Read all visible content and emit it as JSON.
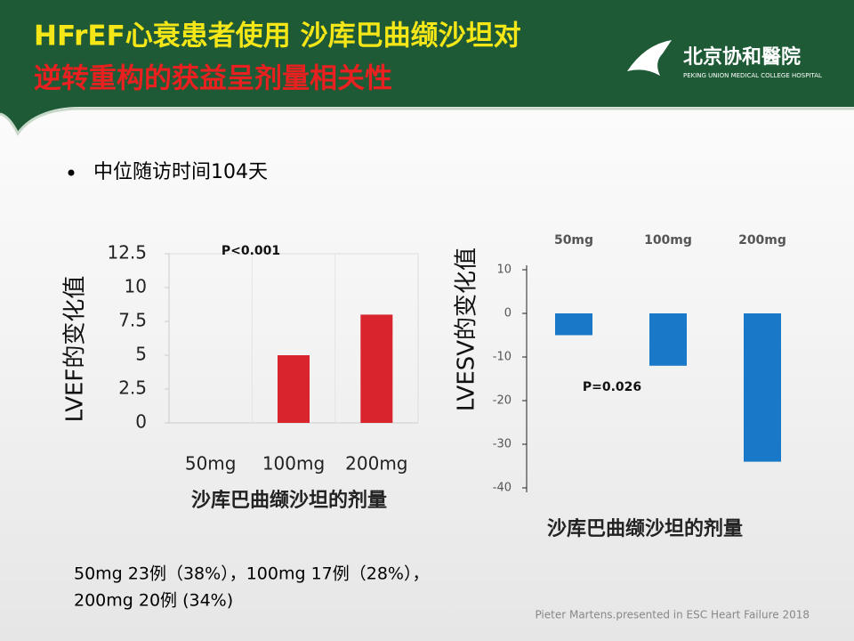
{
  "header": {
    "title_line1": "HFrEF心衰患者使用  沙库巴曲缬沙坦对",
    "title_line2": "逆转重构的获益呈剂量相关性",
    "logo_name": "北京协和醫院",
    "logo_english": "PEKING UNION MEDICAL COLLEGE HOSPITAL"
  },
  "bullet": "中位随访时间104天",
  "chart_data": [
    {
      "type": "bar",
      "categories": [
        "50mg",
        "100mg",
        "200mg"
      ],
      "values": [
        0,
        5,
        8
      ],
      "color": "#d9232d",
      "ylim": [
        0,
        12.5
      ],
      "yticks": [
        0,
        2.5,
        5,
        7.5,
        10,
        12.5
      ],
      "y_label": "LVEF的变化值",
      "x_label": "沙库巴曲缬沙坦的剂量",
      "annotation": "P<0.001",
      "category_axis": "bottom"
    },
    {
      "type": "bar",
      "categories": [
        "50mg",
        "100mg",
        "200mg"
      ],
      "values": [
        -5,
        -12,
        -34
      ],
      "color": "#1a78c8",
      "ylim": [
        -40,
        10
      ],
      "yticks": [
        -40,
        -30,
        -20,
        -10,
        0,
        10
      ],
      "y_label": "LVESV的变化值",
      "x_label": "沙库巴曲缬沙坦的剂量",
      "annotation": "P=0.026",
      "category_axis": "top"
    }
  ],
  "footnote_line1": "50mg 23例（38%），100mg 17例（28%），",
  "footnote_line2": "200mg 20例 (34%)",
  "citation": "Pieter Martens.presented in ESC Heart Failure 2018"
}
